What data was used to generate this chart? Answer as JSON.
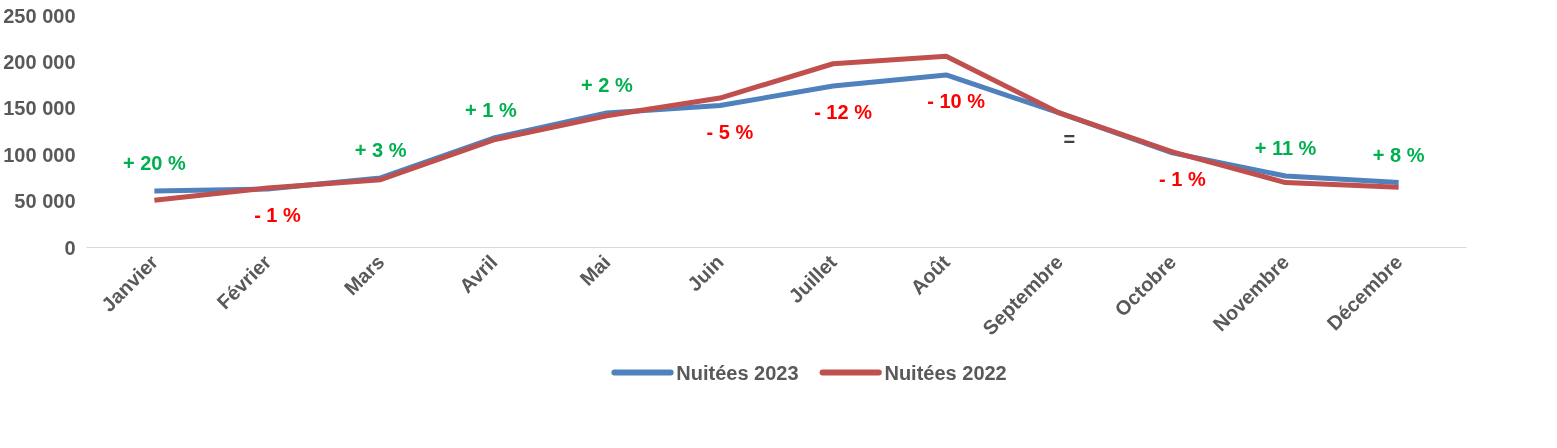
{
  "chart_data": {
    "type": "line",
    "categories": [
      "Janvier",
      "Février",
      "Mars",
      "Avril",
      "Mai",
      "Juin",
      "Juillet",
      "Août",
      "Septembre",
      "Octobre",
      "Novembre",
      "Décembre"
    ],
    "series": [
      {
        "name": "Nuitées 2023",
        "color": "#4f81bd",
        "values": [
          61000,
          63000,
          75000,
          118000,
          145000,
          153000,
          174000,
          186000,
          145000,
          102000,
          77000,
          70000
        ]
      },
      {
        "name": "Nuitées 2022",
        "color": "#c0504d",
        "values": [
          51000,
          64000,
          73000,
          116000,
          142000,
          161000,
          198000,
          206000,
          145000,
          103000,
          70000,
          65000
        ]
      }
    ],
    "ylim": [
      0,
      250000
    ],
    "yticks": [
      {
        "value": 0,
        "label": "0"
      },
      {
        "value": 50000,
        "label": "50 000"
      },
      {
        "value": 100000,
        "label": "100 000"
      },
      {
        "value": 150000,
        "label": "150 000"
      },
      {
        "value": 200000,
        "label": "200 000"
      },
      {
        "value": 250000,
        "label": "250 000"
      }
    ],
    "annotations": [
      "+ 20 %",
      "- 1 %",
      "+ 3 %",
      "+ 1  %",
      "+ 2 %",
      "- 5 %",
      "- 12 %",
      "- 10 %",
      "=",
      "- 1 %",
      "+ 11 %",
      "+ 8 %"
    ],
    "grid": false,
    "legend": "bottom",
    "marker": "none",
    "line_style": "solid"
  }
}
